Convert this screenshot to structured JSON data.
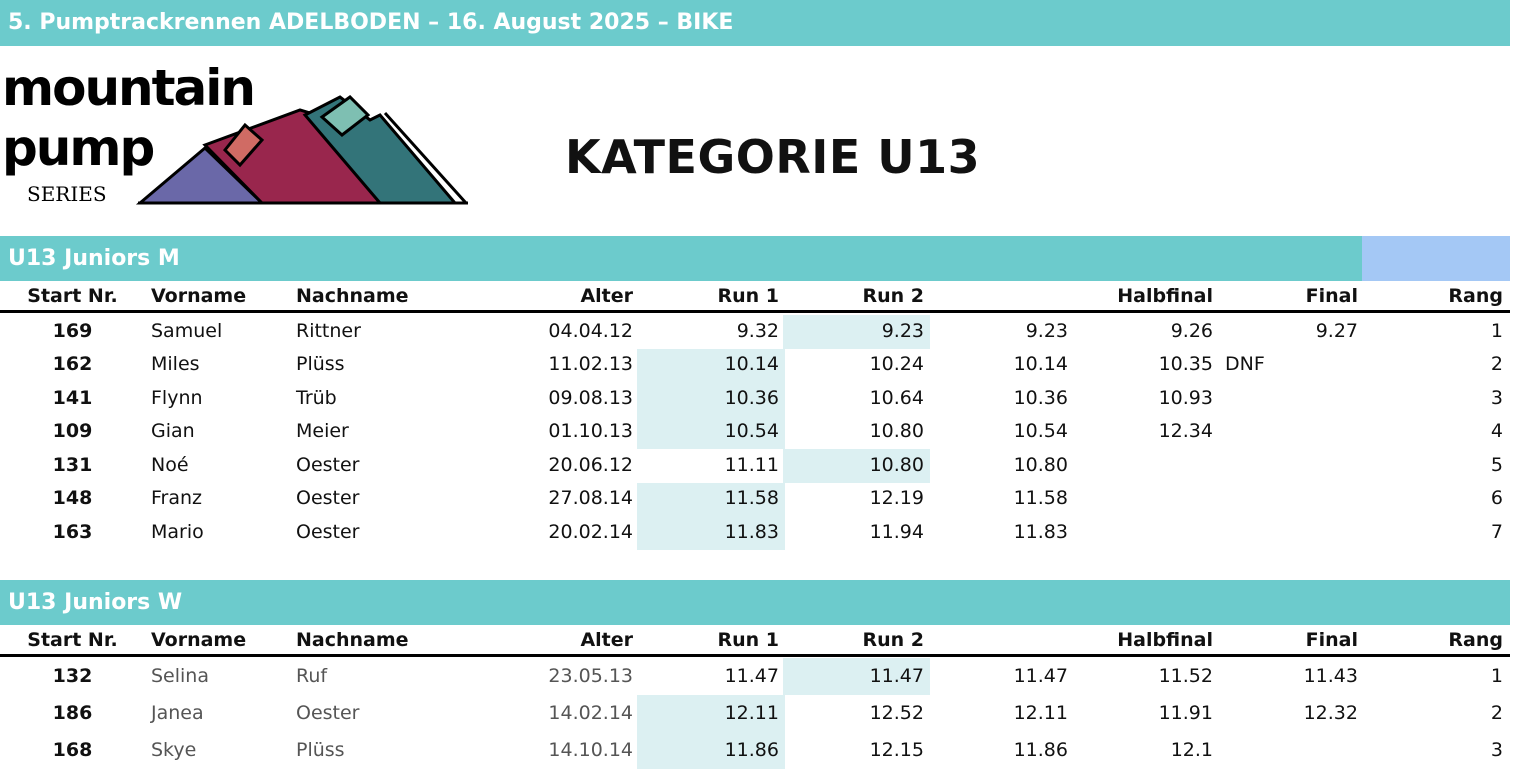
{
  "title": "5. Pumptrackrennen ADELBODEN – 16. August 2025 – BIKE",
  "logo": {
    "line1": "mountain",
    "line2": "pump",
    "line3": "SERIES"
  },
  "category": "KATEGORIE U13",
  "colors": {
    "teal": "#6ccbcc",
    "accent": "#a4c8f5",
    "highlight": "#dcf0f2"
  },
  "headers": {
    "start": "Start Nr.",
    "vorname": "Vorname",
    "nachname": "Nachname",
    "alter": "Alter",
    "run1": "Run 1",
    "run2": "Run 2",
    "best": "",
    "halbfinal": "Halbfinal",
    "final": "Final",
    "rang": "Rang"
  },
  "sections": [
    {
      "title": "U13 Juniors M",
      "rows": [
        {
          "start": "169",
          "vorname": "Samuel",
          "nachname": "Rittner",
          "alter": "04.04.12",
          "run1": "9.32",
          "run2": "9.23",
          "best": "9.23",
          "halbfinal": "9.26",
          "note": "",
          "final": "9.27",
          "rang": "1",
          "best_run": "run2"
        },
        {
          "start": "162",
          "vorname": "Miles",
          "nachname": "Plüss",
          "alter": "11.02.13",
          "run1": "10.14",
          "run2": "10.24",
          "best": "10.14",
          "halbfinal": "10.35",
          "note": "DNF",
          "final": "",
          "rang": "2",
          "best_run": "run1"
        },
        {
          "start": "141",
          "vorname": "Flynn",
          "nachname": "Trüb",
          "alter": "09.08.13",
          "run1": "10.36",
          "run2": "10.64",
          "best": "10.36",
          "halbfinal": "10.93",
          "note": "",
          "final": "",
          "rang": "3",
          "best_run": "run1"
        },
        {
          "start": "109",
          "vorname": "Gian",
          "nachname": "Meier",
          "alter": "01.10.13",
          "run1": "10.54",
          "run2": "10.80",
          "best": "10.54",
          "halbfinal": "12.34",
          "note": "",
          "final": "",
          "rang": "4",
          "best_run": "run1"
        },
        {
          "start": "131",
          "vorname": "Noé",
          "nachname": "Oester",
          "alter": "20.06.12",
          "run1": "11.11",
          "run2": "10.80",
          "best": "10.80",
          "halbfinal": "",
          "note": "",
          "final": "",
          "rang": "5",
          "best_run": "run2"
        },
        {
          "start": "148",
          "vorname": "Franz",
          "nachname": "Oester",
          "alter": "27.08.14",
          "run1": "11.58",
          "run2": "12.19",
          "best": "11.58",
          "halbfinal": "",
          "note": "",
          "final": "",
          "rang": "6",
          "best_run": "run1"
        },
        {
          "start": "163",
          "vorname": "Mario",
          "nachname": "Oester",
          "alter": "20.02.14",
          "run1": "11.83",
          "run2": "11.94",
          "best": "11.83",
          "halbfinal": "",
          "note": "",
          "final": "",
          "rang": "7",
          "best_run": "run1"
        }
      ]
    },
    {
      "title": "U13 Juniors W",
      "rows": [
        {
          "start": "132",
          "vorname": "Selina",
          "nachname": "Ruf",
          "alter": "23.05.13",
          "run1": "11.47",
          "run2": "11.47",
          "best": "11.47",
          "halbfinal": "11.52",
          "note": "",
          "final": "11.43",
          "rang": "1",
          "best_run": "run2"
        },
        {
          "start": "186",
          "vorname": "Janea",
          "nachname": "Oester",
          "alter": "14.02.14",
          "run1": "12.11",
          "run2": "12.52",
          "best": "12.11",
          "halbfinal": "11.91",
          "note": "",
          "final": "12.32",
          "rang": "2",
          "best_run": "run1"
        },
        {
          "start": "168",
          "vorname": "Skye",
          "nachname": "Plüss",
          "alter": "14.10.14",
          "run1": "11.86",
          "run2": "12.15",
          "best": "11.86",
          "halbfinal": "12.1",
          "note": "",
          "final": "",
          "rang": "3",
          "best_run": "run1"
        }
      ]
    }
  ]
}
